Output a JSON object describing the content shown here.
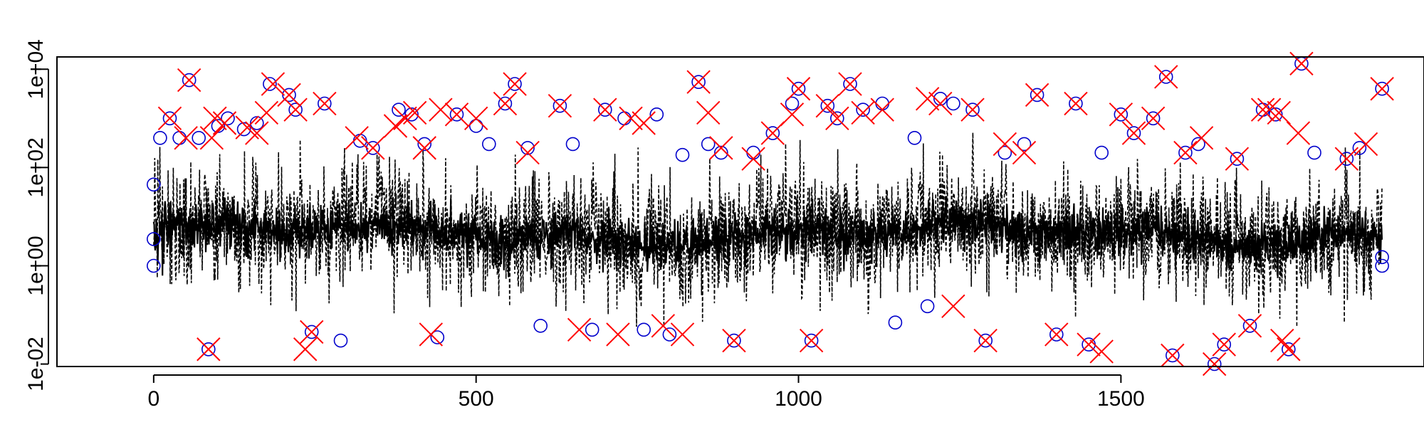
{
  "chart_data": {
    "type": "scatter",
    "title": "",
    "xlabel": "",
    "ylabel": "",
    "xlim": [
      -150,
      1970
    ],
    "ylim_log10": [
      -2.05,
      4.25
    ],
    "y_scale": "log",
    "x_ticks": [
      0,
      500,
      1000,
      1500
    ],
    "x_tick_labels": [
      "0",
      "500",
      "1000",
      "1500"
    ],
    "y_ticks": [
      0.01,
      1,
      100,
      10000
    ],
    "y_tick_labels": [
      "1e-02",
      "1e+00",
      "1e+02",
      "1e+04"
    ],
    "grid": false,
    "legend": "none",
    "colors": {
      "band": "#000000",
      "circles": "#0000cc",
      "crosses": "#ff0000"
    },
    "series": [
      {
        "marker": "circle",
        "points": [
          [
            0,
            45
          ],
          [
            0,
            3.5
          ],
          [
            0,
            1
          ],
          [
            10,
            400
          ],
          [
            25,
            1000
          ],
          [
            40,
            400
          ],
          [
            55,
            6000
          ],
          [
            70,
            400
          ],
          [
            85,
            0.02
          ],
          [
            100,
            700
          ],
          [
            115,
            1000
          ],
          [
            140,
            600
          ],
          [
            160,
            800
          ],
          [
            180,
            5000
          ],
          [
            210,
            3000
          ],
          [
            220,
            1500
          ],
          [
            245,
            0.045
          ],
          [
            265,
            2000
          ],
          [
            290,
            0.03
          ],
          [
            320,
            350
          ],
          [
            340,
            250
          ],
          [
            380,
            1500
          ],
          [
            400,
            1200
          ],
          [
            420,
            300
          ],
          [
            440,
            0.035
          ],
          [
            470,
            1200
          ],
          [
            500,
            700
          ],
          [
            520,
            300
          ],
          [
            545,
            2000
          ],
          [
            560,
            5000
          ],
          [
            580,
            250
          ],
          [
            600,
            0.06
          ],
          [
            630,
            1800
          ],
          [
            650,
            300
          ],
          [
            680,
            0.05
          ],
          [
            700,
            1500
          ],
          [
            730,
            1000
          ],
          [
            760,
            0.05
          ],
          [
            780,
            1200
          ],
          [
            800,
            0.04
          ],
          [
            820,
            180
          ],
          [
            845,
            5500
          ],
          [
            860,
            300
          ],
          [
            880,
            200
          ],
          [
            900,
            0.03
          ],
          [
            930,
            200
          ],
          [
            960,
            500
          ],
          [
            990,
            2000
          ],
          [
            1000,
            4000
          ],
          [
            1020,
            0.03
          ],
          [
            1045,
            1800
          ],
          [
            1060,
            1000
          ],
          [
            1080,
            5000
          ],
          [
            1100,
            1500
          ],
          [
            1130,
            2000
          ],
          [
            1150,
            0.07
          ],
          [
            1180,
            400
          ],
          [
            1200,
            0.15
          ],
          [
            1220,
            2500
          ],
          [
            1240,
            2000
          ],
          [
            1270,
            1500
          ],
          [
            1290,
            0.03
          ],
          [
            1320,
            200
          ],
          [
            1350,
            300
          ],
          [
            1370,
            3000
          ],
          [
            1400,
            0.04
          ],
          [
            1430,
            2000
          ],
          [
            1450,
            0.025
          ],
          [
            1470,
            200
          ],
          [
            1500,
            1200
          ],
          [
            1520,
            500
          ],
          [
            1550,
            1000
          ],
          [
            1570,
            7000
          ],
          [
            1580,
            0.015
          ],
          [
            1600,
            200
          ],
          [
            1620,
            300
          ],
          [
            1645,
            0.01
          ],
          [
            1660,
            0.025
          ],
          [
            1680,
            150
          ],
          [
            1700,
            0.06
          ],
          [
            1720,
            1500
          ],
          [
            1740,
            1200
          ],
          [
            1760,
            0.02
          ],
          [
            1780,
            13000
          ],
          [
            1800,
            200
          ],
          [
            1850,
            150
          ],
          [
            1870,
            250
          ],
          [
            1905,
            4000
          ],
          [
            1905,
            1.5
          ],
          [
            1905,
            1
          ]
        ]
      },
      {
        "marker": "cross",
        "points": [
          [
            25,
            1000
          ],
          [
            50,
            400
          ],
          [
            55,
            6000
          ],
          [
            85,
            0.02
          ],
          [
            90,
            400
          ],
          [
            95,
            1000
          ],
          [
            110,
            800
          ],
          [
            145,
            650
          ],
          [
            160,
            500
          ],
          [
            175,
            1300
          ],
          [
            185,
            5000
          ],
          [
            210,
            3000
          ],
          [
            220,
            1500
          ],
          [
            235,
            0.02
          ],
          [
            245,
            0.045
          ],
          [
            265,
            2000
          ],
          [
            315,
            400
          ],
          [
            340,
            250
          ],
          [
            375,
            700
          ],
          [
            390,
            1000
          ],
          [
            405,
            1300
          ],
          [
            420,
            250
          ],
          [
            430,
            0.04
          ],
          [
            445,
            1500
          ],
          [
            470,
            1200
          ],
          [
            500,
            1000
          ],
          [
            545,
            2000
          ],
          [
            560,
            5000
          ],
          [
            580,
            200
          ],
          [
            630,
            1800
          ],
          [
            660,
            0.05
          ],
          [
            700,
            1500
          ],
          [
            720,
            0.04
          ],
          [
            740,
            1000
          ],
          [
            760,
            800
          ],
          [
            790,
            0.06
          ],
          [
            820,
            0.04
          ],
          [
            845,
            5500
          ],
          [
            860,
            1300
          ],
          [
            880,
            250
          ],
          [
            900,
            0.03
          ],
          [
            930,
            150
          ],
          [
            960,
            500
          ],
          [
            990,
            1200
          ],
          [
            1000,
            4000
          ],
          [
            1020,
            0.03
          ],
          [
            1045,
            1800
          ],
          [
            1060,
            1000
          ],
          [
            1080,
            5000
          ],
          [
            1100,
            1300
          ],
          [
            1130,
            1500
          ],
          [
            1200,
            2500
          ],
          [
            1220,
            2000
          ],
          [
            1240,
            0.15
          ],
          [
            1270,
            1500
          ],
          [
            1290,
            0.03
          ],
          [
            1320,
            300
          ],
          [
            1350,
            200
          ],
          [
            1370,
            3000
          ],
          [
            1400,
            0.04
          ],
          [
            1430,
            2000
          ],
          [
            1450,
            0.025
          ],
          [
            1470,
            0.018
          ],
          [
            1500,
            1200
          ],
          [
            1520,
            500
          ],
          [
            1550,
            1000
          ],
          [
            1570,
            7000
          ],
          [
            1580,
            0.015
          ],
          [
            1600,
            200
          ],
          [
            1625,
            400
          ],
          [
            1645,
            0.01
          ],
          [
            1660,
            0.025
          ],
          [
            1680,
            150
          ],
          [
            1700,
            0.06
          ],
          [
            1720,
            1500
          ],
          [
            1730,
            1500
          ],
          [
            1745,
            1300
          ],
          [
            1750,
            0.03
          ],
          [
            1760,
            0.02
          ],
          [
            1775,
            500
          ],
          [
            1780,
            13000
          ],
          [
            1850,
            150
          ],
          [
            1880,
            300
          ],
          [
            1905,
            4000
          ]
        ]
      }
    ]
  }
}
